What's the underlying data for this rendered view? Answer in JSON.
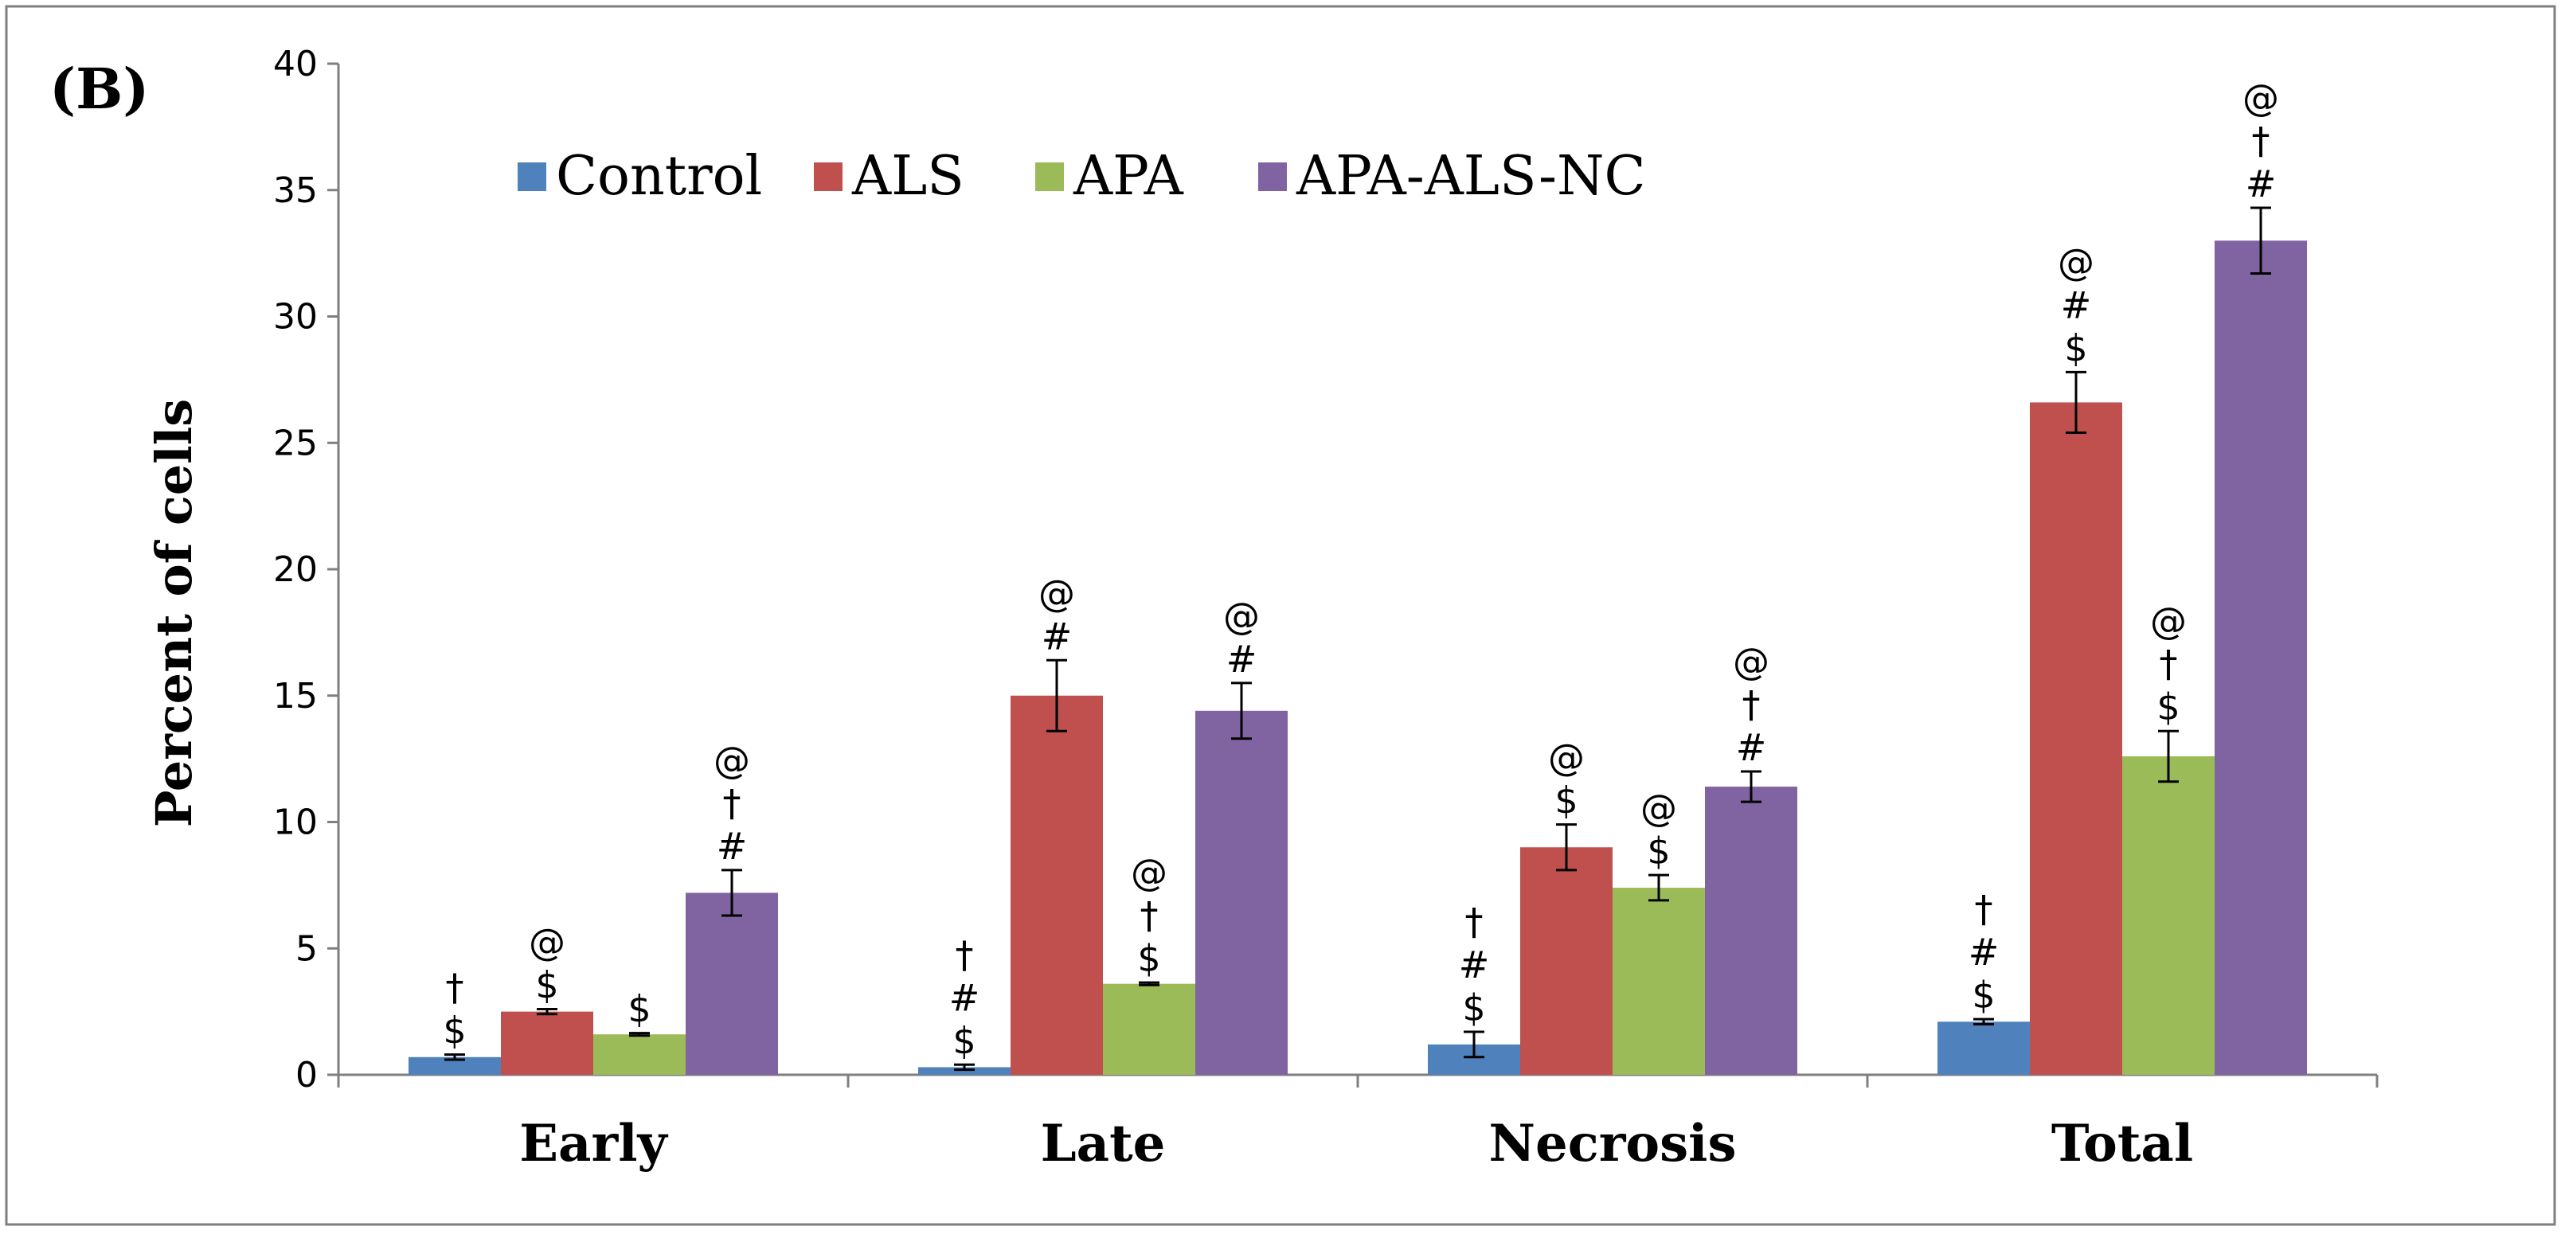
{
  "chart_data": {
    "type": "bar",
    "panel_label": "(B)",
    "ylabel": "Percent of cells",
    "xlabel": "",
    "ylim": [
      0,
      40
    ],
    "yticks": [
      0,
      5,
      10,
      15,
      20,
      25,
      30,
      35,
      40
    ],
    "grid": false,
    "legend_position": "top-left",
    "categories": [
      "Early",
      "Late",
      "Necrosis",
      "Total"
    ],
    "series": [
      {
        "name": "Control",
        "color": "#4F81BD",
        "values": [
          0.7,
          0.3,
          1.2,
          2.1
        ],
        "errors": [
          0.1,
          0.1,
          0.5,
          0.1
        ]
      },
      {
        "name": "ALS",
        "color": "#C0504D",
        "values": [
          2.5,
          15.0,
          9.0,
          26.6
        ],
        "errors": [
          0.1,
          1.4,
          0.9,
          1.2
        ]
      },
      {
        "name": "APA",
        "color": "#9BBB59",
        "values": [
          1.6,
          3.6,
          7.4,
          12.6
        ],
        "errors": [
          0.05,
          0.05,
          0.5,
          1.0
        ]
      },
      {
        "name": "APA-ALS-NC",
        "color": "#8064A2",
        "values": [
          7.2,
          14.4,
          11.4,
          33.0
        ],
        "errors": [
          0.9,
          1.1,
          0.6,
          1.3
        ]
      }
    ],
    "significance": [
      [
        [
          "†",
          "$"
        ],
        [
          "†",
          "#",
          "$"
        ],
        [
          "†",
          "#",
          "$"
        ],
        [
          "†",
          "#",
          "$"
        ]
      ],
      [
        [
          "@",
          "$"
        ],
        [
          "@",
          "#"
        ],
        [
          "@",
          "$"
        ],
        [
          "@",
          "#",
          "$"
        ]
      ],
      [
        [
          "$"
        ],
        [
          "@",
          "†",
          "$"
        ],
        [
          "@",
          "$"
        ],
        [
          "@",
          "†",
          "$"
        ]
      ],
      [
        [
          "@",
          "†",
          "#"
        ],
        [
          "@",
          "#"
        ],
        [
          "@",
          "†",
          "#"
        ],
        [
          "@",
          "†",
          "#"
        ]
      ]
    ]
  }
}
